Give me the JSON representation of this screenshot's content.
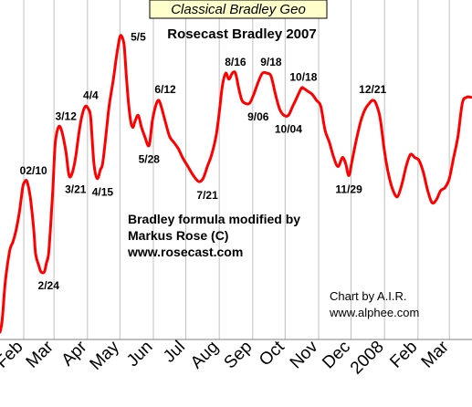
{
  "chart_data": {
    "type": "line",
    "title": "Classical Bradley Geo",
    "subtitle": "Rosecast Bradley 2007",
    "notes": [
      "Bradley formula modified by",
      "Markus Rose (C)",
      "www.rosecast.com"
    ],
    "credit": [
      "Chart by A.I.R.",
      "www.alphee.com"
    ],
    "x_tick_labels": [
      "Feb",
      "Mar",
      "Apr",
      "May",
      "Jun",
      "Jul",
      "Aug",
      "Sep",
      "Oct",
      "Nov",
      "Dec",
      "2008",
      "Feb",
      "Mar"
    ],
    "x_tick_dates": [
      "2007-02-01",
      "2007-03-01",
      "2007-04-01",
      "2007-05-01",
      "2007-06-01",
      "2007-07-01",
      "2007-08-01",
      "2007-09-01",
      "2007-10-01",
      "2007-11-01",
      "2007-12-01",
      "2008-01-01",
      "2008-02-01",
      "2008-03-01"
    ],
    "x_range": [
      "2007-01-10",
      "2008-03-22"
    ],
    "y_range": [
      0,
      100
    ],
    "grid": true,
    "line_color": "#ff0000",
    "grid_color": "#c0c0c0",
    "title_bg": "#ffffcc",
    "series": [
      {
        "x": [
          "2007-01-10",
          "2007-01-12",
          "2007-01-15",
          "2007-01-19",
          "2007-01-22",
          "2007-01-25",
          "2007-01-28",
          "2007-01-31",
          "2007-02-02",
          "2007-02-04",
          "2007-02-07",
          "2007-02-10",
          "2007-02-12",
          "2007-02-15",
          "2007-02-17",
          "2007-02-20",
          "2007-02-22",
          "2007-02-24",
          "2007-02-26",
          "2007-02-28",
          "2007-03-02",
          "2007-03-05",
          "2007-03-08",
          "2007-03-12",
          "2007-03-15",
          "2007-03-18",
          "2007-03-21",
          "2007-03-24",
          "2007-03-27",
          "2007-03-30",
          "2007-04-02",
          "2007-04-04",
          "2007-04-07",
          "2007-04-10",
          "2007-04-13",
          "2007-04-15",
          "2007-04-18",
          "2007-04-21",
          "2007-04-25",
          "2007-04-28",
          "2007-05-01",
          "2007-05-03",
          "2007-05-05",
          "2007-05-07",
          "2007-05-09",
          "2007-05-11",
          "2007-05-13",
          "2007-05-15",
          "2007-05-18",
          "2007-05-21",
          "2007-05-24",
          "2007-05-28",
          "2007-05-31",
          "2007-06-03",
          "2007-06-06",
          "2007-06-09",
          "2007-06-12",
          "2007-06-16",
          "2007-06-20",
          "2007-06-24",
          "2007-06-28",
          "2007-07-03",
          "2007-07-08",
          "2007-07-13",
          "2007-07-17",
          "2007-07-21",
          "2007-07-25",
          "2007-07-29",
          "2007-08-01",
          "2007-08-04",
          "2007-08-07",
          "2007-08-10",
          "2007-08-13",
          "2007-08-16",
          "2007-08-19",
          "2007-08-22",
          "2007-08-25",
          "2007-08-29",
          "2007-09-02",
          "2007-09-06",
          "2007-09-10",
          "2007-09-14",
          "2007-09-18",
          "2007-09-22",
          "2007-09-26",
          "2007-09-30",
          "2007-10-04",
          "2007-10-08",
          "2007-10-12",
          "2007-10-16",
          "2007-10-18",
          "2007-10-22",
          "2007-10-26",
          "2007-10-30",
          "2007-11-03",
          "2007-11-07",
          "2007-11-11",
          "2007-11-15",
          "2007-11-19",
          "2007-11-23",
          "2007-11-26",
          "2007-11-29",
          "2007-12-02",
          "2007-12-06",
          "2007-12-10",
          "2007-12-14",
          "2007-12-18",
          "2007-12-21",
          "2007-12-24",
          "2007-12-28",
          "2008-01-01",
          "2008-01-05",
          "2008-01-09",
          "2008-01-13",
          "2008-01-17",
          "2008-01-21",
          "2008-01-25",
          "2008-01-29",
          "2008-02-02",
          "2008-02-06",
          "2008-02-10",
          "2008-02-14",
          "2008-02-18",
          "2008-02-22",
          "2008-02-26",
          "2008-03-01",
          "2008-03-05",
          "2008-03-09",
          "2008-03-13",
          "2008-03-17",
          "2008-03-21"
        ],
        "y": [
          0,
          4,
          17,
          27,
          30,
          34,
          40,
          48,
          50,
          50,
          45,
          35,
          26,
          22,
          20,
          20,
          23,
          26,
          36,
          48,
          62,
          68,
          67,
          60,
          52,
          53,
          58,
          66,
          72,
          75,
          74,
          71,
          56,
          51,
          54,
          56,
          65,
          75,
          84,
          92,
          98,
          98,
          95,
          85,
          76,
          70,
          68,
          70,
          72,
          68,
          65,
          62,
          70,
          75,
          77,
          74,
          70,
          65,
          63,
          61,
          58,
          55,
          52,
          50,
          51,
          55,
          59,
          65,
          73,
          82,
          86,
          84,
          86,
          86,
          81,
          77,
          76,
          76,
          79,
          83,
          86,
          86,
          85,
          79,
          74,
          72,
          72,
          75,
          78,
          81,
          81,
          80,
          79,
          77,
          75,
          67,
          63,
          58,
          55,
          58,
          56,
          52,
          57,
          64,
          70,
          74,
          76,
          77,
          76,
          71,
          60,
          52,
          47,
          45,
          49,
          55,
          59,
          58,
          57,
          53,
          47,
          43,
          44,
          47,
          48,
          51,
          58,
          65,
          76,
          78,
          78
        ]
      }
    ],
    "annotations": [
      {
        "text": "02/10",
        "x": "2007-02-10",
        "y": 50,
        "pos": "above"
      },
      {
        "text": "2/24",
        "x": "2007-02-24",
        "y": 20,
        "pos": "below"
      },
      {
        "text": "3/12",
        "x": "2007-03-12",
        "y": 68,
        "pos": "above"
      },
      {
        "text": "3/21",
        "x": "2007-03-21",
        "y": 52,
        "pos": "below"
      },
      {
        "text": "4/4",
        "x": "2007-04-04",
        "y": 75,
        "pos": "above"
      },
      {
        "text": "4/15",
        "x": "2007-04-15",
        "y": 51,
        "pos": "below"
      },
      {
        "text": "5/5",
        "x": "2007-05-05",
        "y": 98,
        "pos": "right"
      },
      {
        "text": "5/28",
        "x": "2007-05-28",
        "y": 62,
        "pos": "below"
      },
      {
        "text": "6/12",
        "x": "2007-06-12",
        "y": 77,
        "pos": "above"
      },
      {
        "text": "7/21",
        "x": "2007-07-21",
        "y": 50,
        "pos": "below"
      },
      {
        "text": "8/16",
        "x": "2007-08-16",
        "y": 86,
        "pos": "above"
      },
      {
        "text": "9/06",
        "x": "2007-09-06",
        "y": 76,
        "pos": "below"
      },
      {
        "text": "9/18",
        "x": "2007-09-18",
        "y": 86,
        "pos": "above"
      },
      {
        "text": "10/04",
        "x": "2007-10-04",
        "y": 72,
        "pos": "below"
      },
      {
        "text": "10/18",
        "x": "2007-10-18",
        "y": 81,
        "pos": "above"
      },
      {
        "text": "11/29",
        "x": "2007-11-29",
        "y": 52,
        "pos": "below"
      },
      {
        "text": "12/21",
        "x": "2007-12-21",
        "y": 77,
        "pos": "above"
      }
    ]
  }
}
